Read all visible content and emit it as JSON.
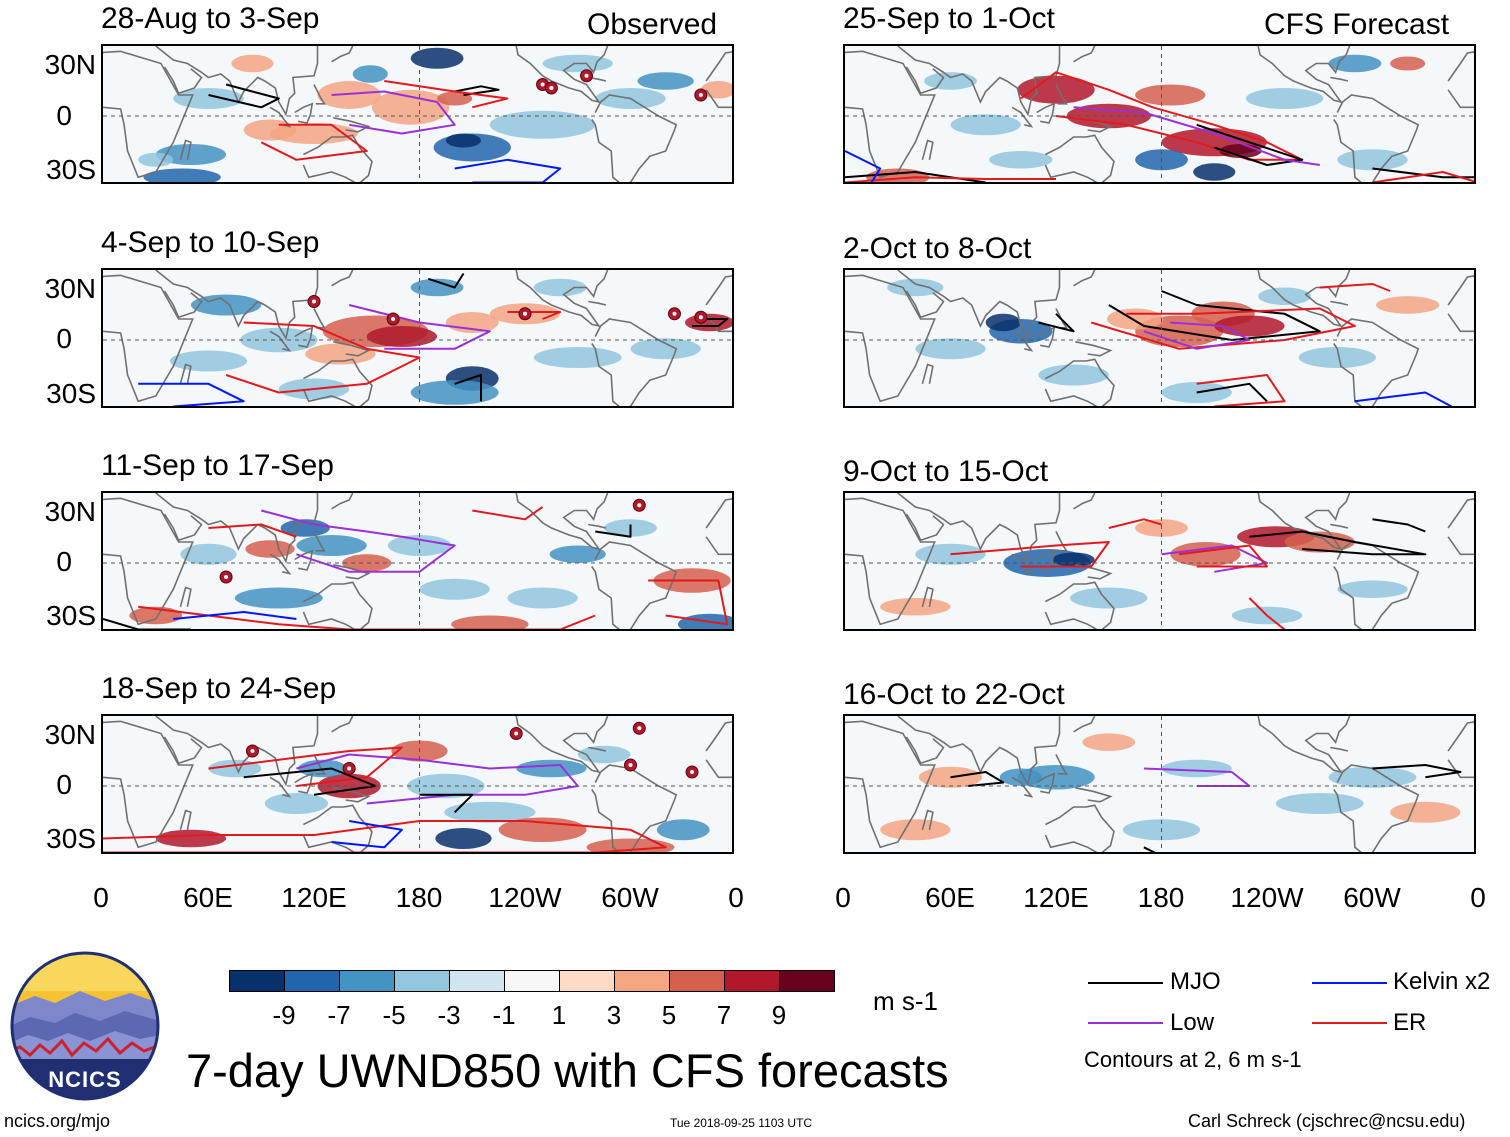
{
  "column_headers": {
    "left": "Observed",
    "right": "CFS Forecast"
  },
  "panels": {
    "left": [
      {
        "title": "28-Aug to 3-Sep"
      },
      {
        "title": "4-Sep to 10-Sep"
      },
      {
        "title": "11-Sep to 17-Sep"
      },
      {
        "title": "18-Sep to 24-Sep"
      }
    ],
    "right": [
      {
        "title": "25-Sep to 1-Oct"
      },
      {
        "title": "2-Oct to 8-Oct"
      },
      {
        "title": "9-Oct to 15-Oct"
      },
      {
        "title": "16-Oct to 22-Oct"
      }
    ]
  },
  "lat_labels": [
    "30N",
    "0",
    "30S"
  ],
  "lon_labels": [
    "0",
    "60E",
    "120E",
    "180",
    "120W",
    "60W",
    "0"
  ],
  "colorbar": {
    "colors": [
      "#08306b",
      "#2166ac",
      "#4393c3",
      "#92c5de",
      "#d1e5f0",
      "#f7f7f7",
      "#fddbc7",
      "#f4a582",
      "#d6604d",
      "#b2182b",
      "#67001f"
    ],
    "ticks": [
      "-9",
      "-7",
      "-5",
      "-3",
      "-1",
      "1",
      "3",
      "5",
      "7",
      "9"
    ],
    "units": "m s-1"
  },
  "legend": {
    "mjo": {
      "label": "MJO",
      "color": "#000000"
    },
    "low": {
      "label": "Low",
      "color": "#9b30d9"
    },
    "kelvin": {
      "label": "Kelvin x2",
      "color": "#0018ff"
    },
    "er": {
      "label": "ER",
      "color": "#e31a1c"
    },
    "note": "Contours at 2, 6 m s-1"
  },
  "logo": {
    "text": "NCICS"
  },
  "main_title": "7-day UWND850 with CFS forecasts",
  "footer": {
    "url": "ncics.org/mjo",
    "timestamp": "Tue 2018-09-25 1103 UTC",
    "credit": "Carl Schreck (cjschrec@ncsu.edu)"
  }
}
